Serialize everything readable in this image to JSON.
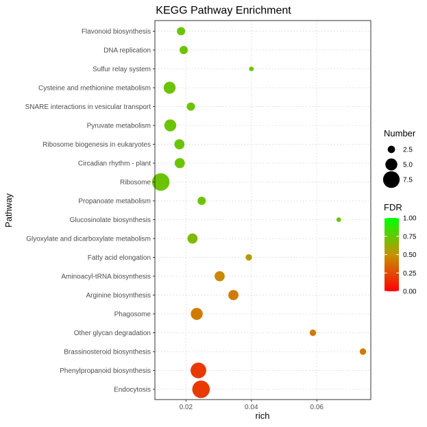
{
  "chart_data": {
    "type": "scatter",
    "title": "KEGG Pathway Enrichment",
    "xlabel": "rich",
    "ylabel": "Pathway",
    "xlim": [
      0.0105,
      0.0765
    ],
    "xticks": [
      0.02,
      0.04,
      0.06
    ],
    "xtick_labels": [
      "0.02",
      "0.04",
      "0.06"
    ],
    "grid": true,
    "legend_placement": "right",
    "size_legend": {
      "title": "Number",
      "values": [
        2.5,
        5.0,
        7.5
      ],
      "labels": [
        "2.5",
        "5.0",
        "7.5"
      ]
    },
    "color_legend": {
      "title": "FDR",
      "range": [
        0,
        1
      ],
      "ticks": [
        1.0,
        0.75,
        0.5,
        0.25,
        0.0
      ],
      "labels": [
        "1.00",
        "0.75",
        "0.50",
        "0.25",
        "0.00"
      ],
      "low_color": "#ff0000",
      "high_color": "#00ff00"
    },
    "points": [
      {
        "pathway": "Flavonoid biosynthesis",
        "rich": 0.0185,
        "number": 3,
        "fdr": 0.73
      },
      {
        "pathway": "DNA replication",
        "rich": 0.0193,
        "number": 3,
        "fdr": 0.73
      },
      {
        "pathway": "Sulfur relay system",
        "rich": 0.04,
        "number": 1,
        "fdr": 0.73
      },
      {
        "pathway": "Cysteine and methionine metabolism",
        "rich": 0.015,
        "number": 5,
        "fdr": 0.73
      },
      {
        "pathway": "SNARE interactions in vesicular transport",
        "rich": 0.0215,
        "number": 3,
        "fdr": 0.73
      },
      {
        "pathway": "Pyruvate metabolism",
        "rich": 0.0152,
        "number": 5,
        "fdr": 0.73
      },
      {
        "pathway": "Ribosome biogenesis in eukaryotes",
        "rich": 0.018,
        "number": 4,
        "fdr": 0.73
      },
      {
        "pathway": "Circadian rhythm - plant",
        "rich": 0.0181,
        "number": 4,
        "fdr": 0.73
      },
      {
        "pathway": "Ribosome",
        "rich": 0.0123,
        "number": 8,
        "fdr": 0.73
      },
      {
        "pathway": "Propanoate metabolism",
        "rich": 0.0248,
        "number": 3,
        "fdr": 0.73
      },
      {
        "pathway": "Glucosinolate biosynthesis",
        "rich": 0.0667,
        "number": 1,
        "fdr": 0.73
      },
      {
        "pathway": "Glyoxylate and dicarboxylate metabolism",
        "rich": 0.022,
        "number": 4,
        "fdr": 0.68
      },
      {
        "pathway": "Fatty acid elongation",
        "rich": 0.0392,
        "number": 2,
        "fdr": 0.55
      },
      {
        "pathway": "Aminoacyl-tRNA biosynthesis",
        "rich": 0.0303,
        "number": 4,
        "fdr": 0.47
      },
      {
        "pathway": "Arginine biosynthesis",
        "rich": 0.0345,
        "number": 4,
        "fdr": 0.42
      },
      {
        "pathway": "Phagosome",
        "rich": 0.0233,
        "number": 5,
        "fdr": 0.42
      },
      {
        "pathway": "Other glycan degradation",
        "rich": 0.0588,
        "number": 2,
        "fdr": 0.42
      },
      {
        "pathway": "Brassinosteroid biosynthesis",
        "rich": 0.0741,
        "number": 2,
        "fdr": 0.42
      },
      {
        "pathway": "Phenylpropanoid biosynthesis",
        "rich": 0.0238,
        "number": 7,
        "fdr": 0.2
      },
      {
        "pathway": "Endocytosis",
        "rich": 0.0246,
        "number": 8,
        "fdr": 0.2
      }
    ]
  }
}
